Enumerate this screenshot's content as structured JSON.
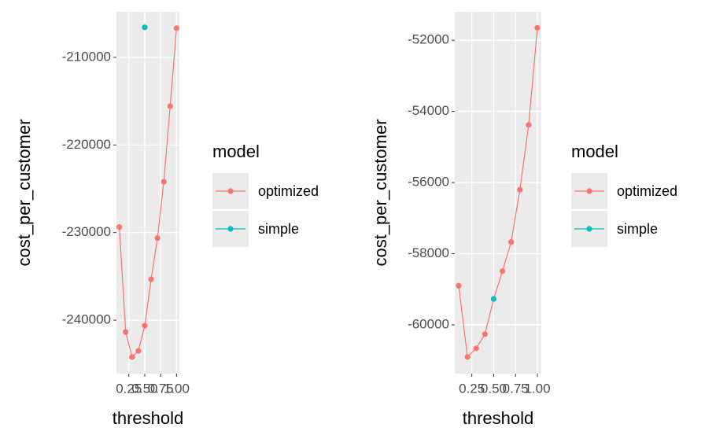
{
  "chart_data": [
    {
      "type": "line",
      "x": [
        0.1,
        0.2,
        0.3,
        0.4,
        0.5,
        0.6,
        0.7,
        0.8,
        0.9,
        1.0
      ],
      "xlabel": "threshold",
      "ylabel": "cost_per_customer",
      "legend_title": "model",
      "series": [
        {
          "name": "optimized",
          "color": "#F8766D",
          "values": [
            -229370,
            -241350,
            -244200,
            -243500,
            -240630,
            -235340,
            -230630,
            -224200,
            -215570,
            -206670
          ]
        },
        {
          "name": "simple",
          "color": "#00BFC4",
          "values": [
            null,
            null,
            null,
            null,
            -206580,
            null,
            null,
            null,
            null,
            null
          ]
        }
      ],
      "xlim": [
        0.055,
        1.045
      ],
      "xticks": [
        0.25,
        {
          "value": 0.5,
          "label": "0.50"
        },
        {
          "value": 0.75,
          "label": "0.75"
        },
        {
          "value": 1.0,
          "label": "1.00"
        }
      ],
      "ylim": [
        -246100,
        -204800
      ],
      "yticks": [
        -240000,
        -230000,
        -220000,
        -210000
      ],
      "grid": true
    },
    {
      "type": "line",
      "x": [
        0.1,
        0.2,
        0.3,
        0.4,
        0.5,
        0.6,
        0.7,
        0.8,
        0.9,
        1.0
      ],
      "xlabel": "threshold",
      "ylabel": "cost_per_customer",
      "legend_title": "model",
      "series": [
        {
          "name": "optimized",
          "color": "#F8766D",
          "values": [
            -58900,
            -60900,
            -60660,
            -60260,
            -59270,
            -58490,
            -57670,
            -56200,
            -54380,
            -51650
          ]
        },
        {
          "name": "simple",
          "color": "#00BFC4",
          "values": [
            null,
            null,
            null,
            null,
            -59270,
            null,
            null,
            null,
            null,
            null
          ]
        }
      ],
      "xlim": [
        0.055,
        1.045
      ],
      "xticks": [
        0.25,
        {
          "value": 0.5,
          "label": "0.50"
        },
        {
          "value": 0.75,
          "label": "0.75"
        },
        {
          "value": 1.0,
          "label": "1.00"
        }
      ],
      "ylim": [
        -61370,
        -51200
      ],
      "yticks": [
        -60000,
        -58000,
        -56000,
        -54000,
        -52000
      ],
      "grid": true
    }
  ]
}
